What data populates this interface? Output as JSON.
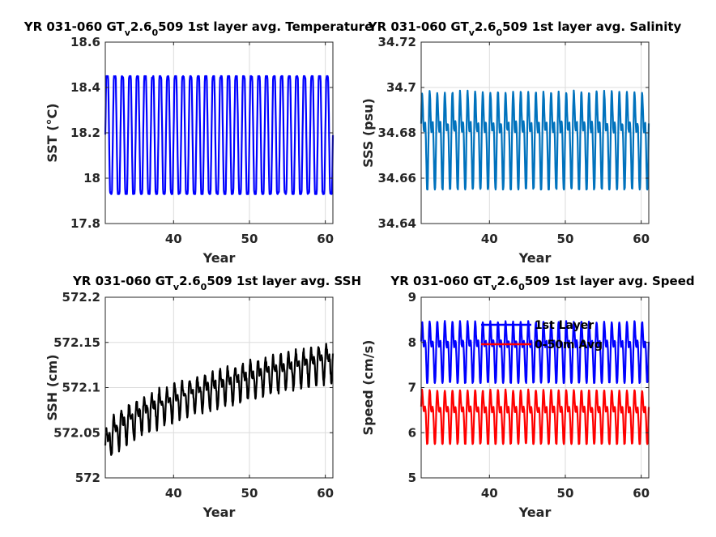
{
  "chart_data": [
    {
      "id": "sst",
      "type": "line",
      "title_parts": [
        "YR 031-060 GT",
        "v",
        "2.6",
        "0",
        "509 1st layer avg. Temperature"
      ],
      "xlabel": "Year",
      "ylabel": "SST (°C)",
      "xlim": [
        31,
        61
      ],
      "ylim": [
        17.8,
        18.6
      ],
      "xticks": [
        40,
        50,
        60
      ],
      "yticks": [
        17.8,
        18,
        18.2,
        18.4,
        18.6
      ],
      "ytick_labels": [
        "17.8",
        "18",
        "18.2",
        "18.4",
        "18.6"
      ],
      "grid": true,
      "legend": "none",
      "series": [
        {
          "color": "#0000ff",
          "mode": "seasonal_plateau",
          "mean": 18.14,
          "max": 18.45,
          "min": 17.93,
          "trend_per_year": 0.0
        }
      ]
    },
    {
      "id": "sss",
      "type": "line",
      "title_parts": [
        "YR 031-060 GT",
        "v",
        "2.6",
        "0",
        "509 1st layer avg. Salinity"
      ],
      "xlabel": "Year",
      "ylabel": "SSS (psu)",
      "xlim": [
        31,
        61
      ],
      "ylim": [
        34.64,
        34.72
      ],
      "xticks": [
        40,
        50,
        60
      ],
      "yticks": [
        34.64,
        34.66,
        34.68,
        34.7,
        34.72
      ],
      "ytick_labels": [
        "34.64",
        "34.66",
        "34.68",
        "34.7",
        "34.72"
      ],
      "grid": true,
      "legend": "none",
      "series": [
        {
          "color": "#0072bd",
          "mode": "double",
          "mean": 34.6835,
          "max": 34.702,
          "min": 34.655,
          "trend_per_year": 0.0
        }
      ]
    },
    {
      "id": "ssh",
      "type": "line",
      "title_parts": [
        "YR 031-060 GT",
        "v",
        "2.6",
        "0",
        "509 1st layer avg. SSH"
      ],
      "xlabel": "Year",
      "ylabel": "SSH (cm)",
      "xlim": [
        31,
        61
      ],
      "ylim": [
        572,
        572.2
      ],
      "xticks": [
        40,
        50,
        60
      ],
      "yticks": [
        572,
        572.05,
        572.1,
        572.15,
        572.2
      ],
      "ytick_labels": [
        "572",
        "572.05",
        "572.1",
        "572.15",
        "572.2"
      ],
      "grid": true,
      "legend": "none",
      "series": [
        {
          "color": "#000000",
          "mode": "trend",
          "start_mean": 572.03,
          "end_mean": 572.13,
          "amplitude": 0.022
        }
      ]
    },
    {
      "id": "speed",
      "type": "line",
      "title_parts": [
        "YR 031-060 GT",
        "v",
        "2.6",
        "0",
        "509 1st layer avg. Speed"
      ],
      "xlabel": "Year",
      "ylabel": "Speed (cm/s)",
      "xlim": [
        31,
        61
      ],
      "ylim": [
        5,
        9
      ],
      "xticks": [
        40,
        50,
        60
      ],
      "yticks": [
        5,
        6,
        7,
        8,
        9
      ],
      "ytick_labels": [
        "5",
        "6",
        "7",
        "8",
        "9"
      ],
      "grid": true,
      "legend": "top-center",
      "series": [
        {
          "name": "1st Layer",
          "color": "#0000ff",
          "mode": "double",
          "mean": 7.85,
          "max": 8.58,
          "min": 7.1,
          "trend_per_year": 0.0
        },
        {
          "name": "0-50m Avg",
          "color": "#ff0000",
          "mode": "double",
          "mean": 6.42,
          "max": 7.05,
          "min": 5.75,
          "trend_per_year": 0.0
        }
      ]
    }
  ]
}
